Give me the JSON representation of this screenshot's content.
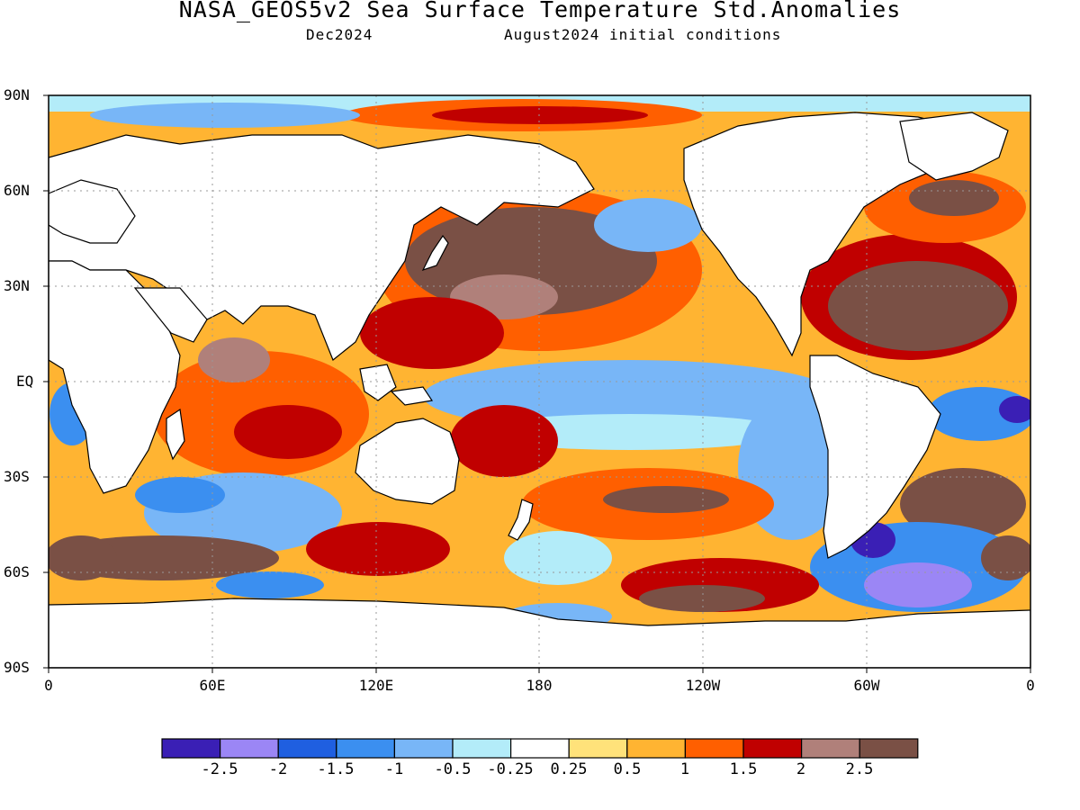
{
  "title": "NASA_GEOS5v2 Sea Surface Temperature Std.Anomalies",
  "subtitle_left": "Dec2024",
  "subtitle_right": "August2024 initial conditions",
  "lat_labels": [
    "90N",
    "60N",
    "30N",
    "EQ",
    "30S",
    "60S",
    "90S"
  ],
  "lon_labels": [
    "0",
    "60E",
    "120E",
    "180",
    "120W",
    "60W",
    "0"
  ],
  "colorbar": {
    "colors": [
      "#3a1fb5",
      "#9b86f5",
      "#1f5fe0",
      "#3b8ff0",
      "#78b6f7",
      "#b3ecf9",
      "#ffffff",
      "#ffe27a",
      "#ffb432",
      "#ff5f00",
      "#c00000",
      "#b0807a",
      "#7a5045"
    ],
    "labels": [
      "-2.5",
      "-2",
      "-1.5",
      "-1",
      "-0.5",
      "-0.25",
      "0.25",
      "0.5",
      "1",
      "1.5",
      "2",
      "2.5"
    ]
  }
}
